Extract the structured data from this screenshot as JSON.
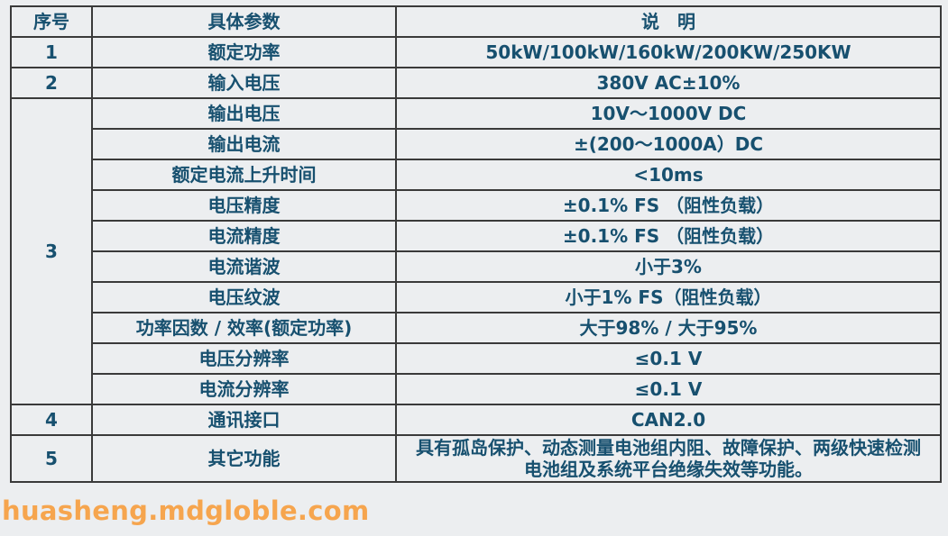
{
  "header": {
    "col_no": "序号",
    "col_param": "具体参数",
    "col_desc": "说　明"
  },
  "rows": [
    {
      "no": "1",
      "param": "额定功率",
      "desc": "50kW/100kW/160kW/200KW/250KW"
    },
    {
      "no": "2",
      "param": "输入电压",
      "desc": "380V AC±10%"
    },
    {
      "no": "3",
      "param": "输出电压",
      "desc": "10V～1000V DC"
    },
    {
      "param": "输出电流",
      "desc": "±(200～1000A）DC"
    },
    {
      "param": "额定电流上升时间",
      "desc": "<10ms"
    },
    {
      "param": "电压精度",
      "desc": "±0.1% FS （阻性负载）"
    },
    {
      "param": "电流精度",
      "desc": "±0.1% FS （阻性负载）"
    },
    {
      "param": "电流谐波",
      "desc": "小于3%"
    },
    {
      "param": "电压纹波",
      "desc": "小于1% FS（阻性负载）"
    },
    {
      "param": "功率因数 / 效率(额定功率)",
      "desc": "大于98% / 大于95%"
    },
    {
      "param": "电压分辨率",
      "desc": "≤0.1 V"
    },
    {
      "param": "电流分辨率",
      "desc": "≤0.1 V"
    },
    {
      "no": "4",
      "param": "通讯接口",
      "desc": "CAN2.0"
    },
    {
      "no": "5",
      "param": "其它功能",
      "desc": "具有孤岛保护、动态测量电池组内阻、故障保护、两级快速检测电池组及系统平台绝缘失效等功能。"
    }
  ],
  "watermark": "huasheng.mdgloble.com"
}
